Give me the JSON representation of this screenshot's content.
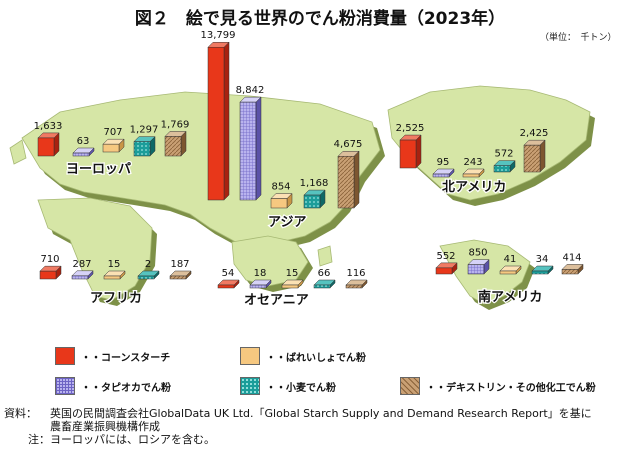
{
  "title": "図２　絵で見る世界のでん粉消費量（2023年）",
  "unit": "（単位：　千トン）",
  "chart_data": {
    "type": "bar",
    "categories": [
      "ヨーロッパ",
      "アジア",
      "北アメリカ",
      "アフリカ",
      "オセアニア",
      "南アメリカ"
    ],
    "series": [
      {
        "name": "コーンスターチ",
        "values": [
          1633,
          13799,
          2525,
          710,
          54,
          552
        ],
        "color": "#e8371a"
      },
      {
        "name": "タピオカでん粉",
        "values": [
          63,
          8842,
          95,
          287,
          18,
          850
        ],
        "color": "#8f86d8"
      },
      {
        "name": "ばれいしょでん粉",
        "values": [
          707,
          854,
          243,
          15,
          15,
          41
        ],
        "color": "#f6c880"
      },
      {
        "name": "小麦でん粉",
        "values": [
          1297,
          1168,
          572,
          2,
          66,
          34
        ],
        "color": "#1b9d9a"
      },
      {
        "name": "デキストリン・その他化工でん粉",
        "values": [
          1769,
          4675,
          2425,
          187,
          116,
          414
        ],
        "color": "#b88a5c"
      }
    ],
    "value_labels": {
      "ヨーロッパ": [
        "1,633",
        "63",
        "707",
        "1,297",
        "1,769"
      ],
      "アジア": [
        "13,799",
        "8,842",
        "854",
        "1,168",
        "4,675"
      ],
      "北アメリカ": [
        "2,525",
        "95",
        "243",
        "572",
        "2,425"
      ],
      "アフリカ": [
        "710",
        "287",
        "15",
        "2",
        "187"
      ],
      "オセアニア": [
        "54",
        "18",
        "15",
        "66",
        "116"
      ],
      "南アメリカ": [
        "552",
        "850",
        "41",
        "34",
        "414"
      ]
    }
  },
  "legend": [
    {
      "label": "・・コーンスターチ",
      "color": "#e8371a"
    },
    {
      "label": "・・ばれいしょでん粉",
      "color": "#f6c880"
    },
    {
      "label": "・・タピオカでん粉",
      "color": "#8f86d8"
    },
    {
      "label": "・・小麦でん粉",
      "color": "#1b9d9a"
    },
    {
      "label": "・・デキストリン・その他化工でん粉",
      "color": "#b88a5c"
    }
  ],
  "notes": [
    {
      "label": "資料：",
      "text": "英国の民間調査会社GlobalData UK Ltd.「Global Starch Supply and Demand Research Report」を基に"
    },
    {
      "label": "",
      "text": "農畜産業振興機構作成"
    },
    {
      "label": "注：",
      "text": "ヨーロッパには、ロシアを含む。"
    }
  ]
}
